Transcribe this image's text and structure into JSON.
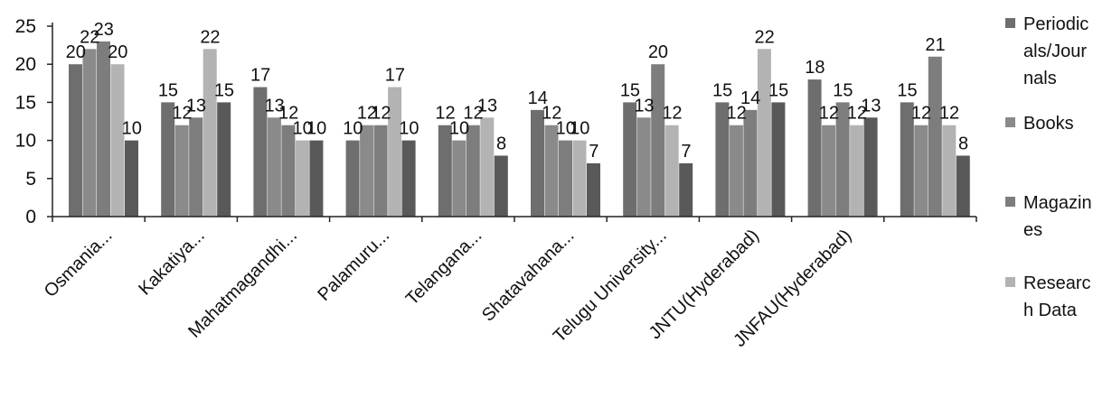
{
  "chart_data": {
    "type": "bar",
    "title": "",
    "xlabel": "",
    "ylabel": "",
    "ylim": [
      0,
      25
    ],
    "yticks": [
      0,
      5,
      10,
      15,
      20,
      25
    ],
    "grid": false,
    "legend_position": "right",
    "categories": [
      "Osmania...",
      "Kakatiya...",
      "Mahatmagandhi...",
      "Palamuru...",
      "Telangana...",
      "Shatavahana...",
      "Telugu University...",
      "JNTU(Hyderabad)",
      "JNFAU(Hyderabad)",
      ""
    ],
    "series": [
      {
        "name": "Periodicals/Journals",
        "legend_lines": [
          "Periodic",
          "als/Jour",
          "nals"
        ],
        "color": "#6e6e6e",
        "values": [
          20,
          15,
          17,
          10,
          12,
          14,
          15,
          15,
          18,
          15
        ]
      },
      {
        "name": "Books",
        "legend_lines": [
          "Books"
        ],
        "color": "#8a8a8a",
        "values": [
          22,
          12,
          13,
          12,
          10,
          12,
          13,
          12,
          12,
          12
        ]
      },
      {
        "name": "Magazines",
        "legend_lines": [
          "Magazin",
          "es"
        ],
        "color": "#7d7d7d",
        "values": [
          23,
          13,
          12,
          12,
          12,
          10,
          20,
          14,
          15,
          21
        ]
      },
      {
        "name": "Research Data",
        "legend_lines": [
          "Researc",
          "h Data"
        ],
        "color": "#b3b3b3",
        "values": [
          20,
          22,
          10,
          17,
          13,
          10,
          12,
          22,
          12,
          12
        ]
      },
      {
        "name": "",
        "legend_lines": [],
        "color": "#595959",
        "values": [
          10,
          15,
          10,
          10,
          8,
          7,
          7,
          15,
          13,
          8
        ]
      }
    ]
  }
}
